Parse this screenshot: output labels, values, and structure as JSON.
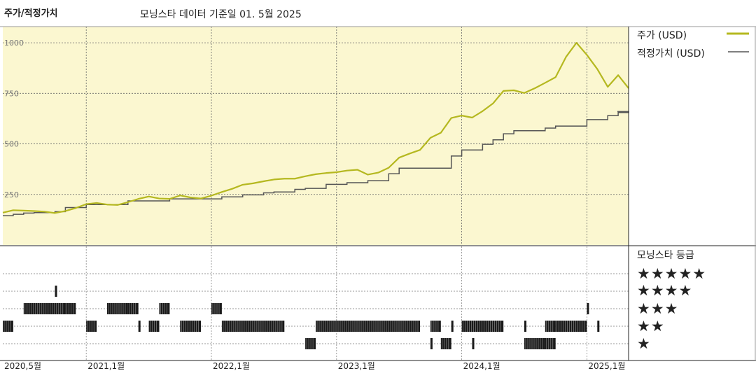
{
  "header": {
    "title": "주가/적정가치",
    "subtitle": "모닝스타 데이터 기준일 01. 5월 2025"
  },
  "legend": {
    "price_label": "주가 (USD)",
    "fair_value_label": "적정가치 (USD)",
    "price_color": "#b5b820",
    "fair_value_color": "#555555",
    "plot_bg": "#fbf7d0"
  },
  "rating": {
    "title": "모닝스타 등급",
    "five": "★★★★★",
    "four": "★★★★",
    "three": "★★★",
    "two": "★★",
    "one": "★"
  },
  "chart_data": [
    {
      "type": "line",
      "x_axis": "date",
      "xlim": [
        "2020-05",
        "2025-05"
      ],
      "x_tick_labels": [
        "2020,5월",
        "2021,1월",
        "2022,1월",
        "2023,1월",
        "2024,1월",
        "2025,1월"
      ],
      "ylim": [
        0,
        1080
      ],
      "y_ticks": [
        250,
        500,
        750,
        1000
      ],
      "y_tick_labels": [
        "250",
        "500",
        "750",
        "1000"
      ],
      "grid": true,
      "legend_position": "right",
      "series": [
        {
          "name": "주가 (USD)",
          "x": [
            "2020-05",
            "2020-06",
            "2020-07",
            "2020-08",
            "2020-09",
            "2020-10",
            "2020-11",
            "2020-12",
            "2021-01",
            "2021-02",
            "2021-03",
            "2021-04",
            "2021-05",
            "2021-06",
            "2021-07",
            "2021-08",
            "2021-09",
            "2021-10",
            "2021-11",
            "2021-12",
            "2022-01",
            "2022-02",
            "2022-03",
            "2022-04",
            "2022-05",
            "2022-06",
            "2022-07",
            "2022-08",
            "2022-09",
            "2022-10",
            "2022-11",
            "2022-12",
            "2023-01",
            "2023-02",
            "2023-03",
            "2023-04",
            "2023-05",
            "2023-06",
            "2023-07",
            "2023-08",
            "2023-09",
            "2023-10",
            "2023-11",
            "2023-12",
            "2024-01",
            "2024-02",
            "2024-03",
            "2024-04",
            "2024-05",
            "2024-06",
            "2024-07",
            "2024-08",
            "2024-09",
            "2024-10",
            "2024-11",
            "2024-12",
            "2025-01",
            "2025-02",
            "2025-03",
            "2025-04",
            "2025-05"
          ],
          "y": [
            160,
            172,
            170,
            168,
            165,
            158,
            168,
            183,
            202,
            208,
            200,
            198,
            212,
            228,
            240,
            230,
            228,
            245,
            235,
            230,
            244,
            262,
            278,
            298,
            305,
            315,
            324,
            328,
            328,
            340,
            350,
            356,
            360,
            368,
            372,
            348,
            358,
            382,
            432,
            452,
            470,
            530,
            555,
            628,
            640,
            630,
            662,
            700,
            762,
            765,
            752,
            775,
            802,
            830,
            930,
            1000,
            940,
            870,
            782,
            840,
            775
          ]
        },
        {
          "name": "적정가치 (USD)",
          "x": [
            "2020-05",
            "2020-06",
            "2020-07",
            "2020-08",
            "2020-09",
            "2020-10",
            "2020-11",
            "2020-12",
            "2021-01",
            "2021-02",
            "2021-03",
            "2021-04",
            "2021-05",
            "2021-06",
            "2021-07",
            "2021-08",
            "2021-09",
            "2021-10",
            "2021-11",
            "2021-12",
            "2022-01",
            "2022-02",
            "2022-03",
            "2022-04",
            "2022-05",
            "2022-06",
            "2022-07",
            "2022-08",
            "2022-09",
            "2022-10",
            "2022-11",
            "2022-12",
            "2023-01",
            "2023-02",
            "2023-03",
            "2023-04",
            "2023-05",
            "2023-06",
            "2023-07",
            "2023-08",
            "2023-09",
            "2023-10",
            "2023-11",
            "2023-12",
            "2024-01",
            "2024-02",
            "2024-03",
            "2024-04",
            "2024-05",
            "2024-06",
            "2024-07",
            "2024-08",
            "2024-09",
            "2024-10",
            "2024-11",
            "2024-12",
            "2025-01",
            "2025-02",
            "2025-03",
            "2025-04",
            "2025-05"
          ],
          "y": [
            145,
            152,
            158,
            160,
            160,
            165,
            185,
            185,
            200,
            200,
            200,
            200,
            218,
            218,
            218,
            218,
            228,
            228,
            228,
            228,
            228,
            238,
            238,
            248,
            248,
            258,
            262,
            262,
            275,
            280,
            280,
            300,
            300,
            308,
            308,
            318,
            318,
            352,
            380,
            380,
            380,
            380,
            380,
            440,
            470,
            470,
            498,
            520,
            550,
            565,
            565,
            565,
            578,
            588,
            588,
            588,
            620,
            620,
            640,
            655,
            660
          ]
        }
      ]
    },
    {
      "type": "heatmap",
      "title": "모닝스타 등급",
      "categories": [
        "★★★★★",
        "★★★★",
        "★★★",
        "★★",
        "★"
      ],
      "x_axis": "date",
      "xlim": [
        "2020-05",
        "2025-05"
      ],
      "segments": [
        {
          "rating": 4,
          "start": "2020-10",
          "end": "2020-10"
        },
        {
          "rating": 3,
          "start": "2020-07",
          "end": "2020-11"
        },
        {
          "rating": 3,
          "start": "2020-11",
          "end": "2020-12"
        },
        {
          "rating": 3,
          "start": "2021-03",
          "end": "2021-05"
        },
        {
          "rating": 3,
          "start": "2021-05",
          "end": "2021-06"
        },
        {
          "rating": 3,
          "start": "2021-08",
          "end": "2021-09"
        },
        {
          "rating": 3,
          "start": "2022-01",
          "end": "2022-02"
        },
        {
          "rating": 3,
          "start": "2025-01",
          "end": "2025-01"
        },
        {
          "rating": 2,
          "start": "2020-05",
          "end": "2020-06"
        },
        {
          "rating": 2,
          "start": "2021-01",
          "end": "2021-02"
        },
        {
          "rating": 2,
          "start": "2021-06",
          "end": "2021-06"
        },
        {
          "rating": 2,
          "start": "2021-07",
          "end": "2021-08"
        },
        {
          "rating": 2,
          "start": "2021-10",
          "end": "2021-12"
        },
        {
          "rating": 2,
          "start": "2022-02",
          "end": "2022-08"
        },
        {
          "rating": 2,
          "start": "2022-11",
          "end": "2023-09"
        },
        {
          "rating": 2,
          "start": "2023-10",
          "end": "2023-11"
        },
        {
          "rating": 2,
          "start": "2023-12",
          "end": "2023-12"
        },
        {
          "rating": 2,
          "start": "2024-01",
          "end": "2024-05"
        },
        {
          "rating": 2,
          "start": "2024-07",
          "end": "2024-07"
        },
        {
          "rating": 2,
          "start": "2024-09",
          "end": "2024-10"
        },
        {
          "rating": 2,
          "start": "2024-10",
          "end": "2025-01"
        },
        {
          "rating": 2,
          "start": "2025-02",
          "end": "2025-02"
        },
        {
          "rating": 1,
          "start": "2022-10",
          "end": "2022-11"
        },
        {
          "rating": 1,
          "start": "2023-10",
          "end": "2023-10"
        },
        {
          "rating": 1,
          "start": "2023-11",
          "end": "2023-12"
        },
        {
          "rating": 1,
          "start": "2024-02",
          "end": "2024-02"
        },
        {
          "rating": 1,
          "start": "2024-07",
          "end": "2024-09"
        },
        {
          "rating": 1,
          "start": "2024-09",
          "end": "2024-10"
        }
      ]
    }
  ]
}
